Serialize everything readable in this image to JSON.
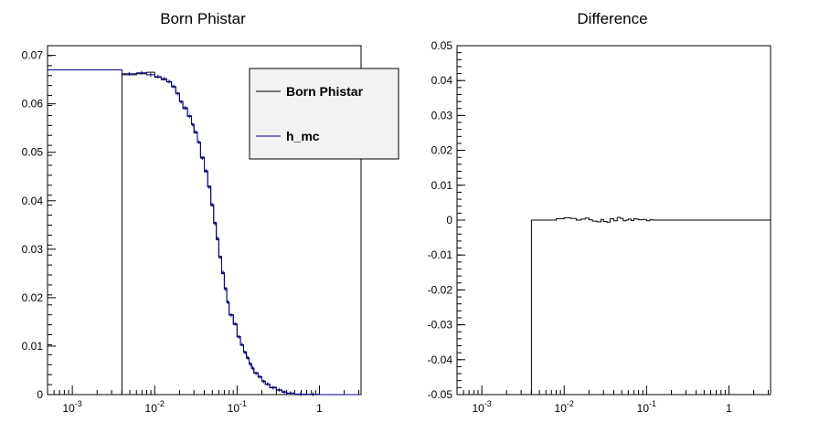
{
  "chart_data": [
    {
      "type": "line",
      "title": "Born Phistar",
      "xlabel": "",
      "ylabel": "",
      "xscale": "log",
      "xlim": [
        0.0005,
        3.2
      ],
      "ylim": [
        0,
        0.072
      ],
      "xticks": [
        {
          "v": 0.001,
          "base": "10",
          "exp": "-3"
        },
        {
          "v": 0.01,
          "base": "10",
          "exp": "-2"
        },
        {
          "v": 0.1,
          "base": "10",
          "exp": "-1"
        },
        {
          "v": 1,
          "base": "1",
          "exp": ""
        }
      ],
      "yticks": [
        "0",
        "0.01",
        "0.02",
        "0.03",
        "0.04",
        "0.05",
        "0.06",
        "0.07"
      ],
      "legend": {
        "placement": "top-right",
        "entries": [
          "Born Phistar",
          "h_mc"
        ]
      },
      "colors": {
        "born": "#000000",
        "mc": "#00008b"
      },
      "edges": [
        0.0005,
        0.004,
        0.006,
        0.008,
        0.01,
        0.012,
        0.014,
        0.016,
        0.018,
        0.02,
        0.022,
        0.025,
        0.028,
        0.03,
        0.033,
        0.036,
        0.04,
        0.044,
        0.048,
        0.052,
        0.056,
        0.06,
        0.065,
        0.07,
        0.075,
        0.08,
        0.09,
        0.1,
        0.11,
        0.12,
        0.13,
        0.14,
        0.15,
        0.16,
        0.18,
        0.2,
        0.22,
        0.25,
        0.3,
        0.35,
        0.4,
        0.5,
        0.7,
        1.0,
        3.2
      ],
      "series": [
        {
          "name": "Born Phistar",
          "values": [
            0,
            0.066,
            0.0662,
            0.0665,
            0.0655,
            0.065,
            0.0645,
            0.0635,
            0.0622,
            0.0605,
            0.059,
            0.0575,
            0.0558,
            0.054,
            0.052,
            0.049,
            0.046,
            0.043,
            0.039,
            0.0355,
            0.032,
            0.0285,
            0.025,
            0.022,
            0.019,
            0.0165,
            0.0145,
            0.012,
            0.0102,
            0.0088,
            0.0075,
            0.0064,
            0.0054,
            0.0045,
            0.0036,
            0.0028,
            0.0021,
            0.0015,
            0.0009,
            0.0006,
            0.0003,
            0.0001,
            5e-05,
            0.0
          ]
        },
        {
          "name": "h_mc",
          "values": [
            0.067,
            0.0662,
            0.0664,
            0.066,
            0.0656,
            0.0652,
            0.0646,
            0.0636,
            0.0621,
            0.0604,
            0.0592,
            0.0574,
            0.0557,
            0.0542,
            0.0521,
            0.0488,
            0.0462,
            0.0428,
            0.0392,
            0.0353,
            0.0322,
            0.0283,
            0.0252,
            0.0218,
            0.0191,
            0.0164,
            0.0146,
            0.0119,
            0.0103,
            0.0087,
            0.0076,
            0.0063,
            0.0055,
            0.0044,
            0.0037,
            0.0027,
            0.0022,
            0.0014,
            0.001,
            0.0005,
            0.0003,
            0.0001,
            5e-05,
            0.0
          ]
        }
      ]
    },
    {
      "type": "line",
      "title": "Difference",
      "xlabel": "",
      "ylabel": "",
      "xscale": "log",
      "xlim": [
        0.0005,
        3.2
      ],
      "ylim": [
        -0.05,
        0.05
      ],
      "xticks": [
        {
          "v": 0.001,
          "base": "10",
          "exp": "-3"
        },
        {
          "v": 0.01,
          "base": "10",
          "exp": "-2"
        },
        {
          "v": 0.1,
          "base": "10",
          "exp": "-1"
        },
        {
          "v": 1,
          "base": "1",
          "exp": ""
        }
      ],
      "yticks": [
        "0.05",
        "0.04",
        "0.03",
        "0.02",
        "0.01",
        "0",
        "-0.01",
        "-0.02",
        "-0.03",
        "-0.04",
        "-0.05"
      ],
      "colors": {
        "diff": "#000000"
      },
      "edges": [
        0.0005,
        0.004,
        0.006,
        0.008,
        0.01,
        0.012,
        0.014,
        0.016,
        0.018,
        0.02,
        0.022,
        0.025,
        0.028,
        0.03,
        0.033,
        0.036,
        0.04,
        0.044,
        0.048,
        0.052,
        0.056,
        0.06,
        0.065,
        0.07,
        0.075,
        0.08,
        0.09,
        0.1,
        0.11,
        0.12,
        0.13,
        0.14,
        0.15,
        0.16,
        0.18,
        0.2,
        0.22,
        0.25,
        0.3,
        0.35,
        0.4,
        0.5,
        0.7,
        1.0,
        3.2
      ],
      "series": [
        {
          "name": "",
          "values": [
            null,
            0.0,
            0.0,
            0.0004,
            0.0007,
            0.0005,
            0.0,
            0.0003,
            0.0006,
            0.0001,
            -0.0003,
            -0.0005,
            0.0002,
            -0.0004,
            -0.0006,
            0.0004,
            -0.0002,
            0.0008,
            0.0005,
            -0.0002,
            0.0,
            0.0003,
            -0.0001,
            0.0004,
            0.0003,
            0.0001,
            0.0002,
            -0.0002,
            0.0001,
            0.0,
            0.0,
            0.0,
            0.0,
            0.0,
            0.0,
            0.0,
            0.0,
            0.0,
            0.0,
            0.0,
            0.0,
            0.0,
            0.0,
            0.0
          ]
        }
      ]
    }
  ]
}
